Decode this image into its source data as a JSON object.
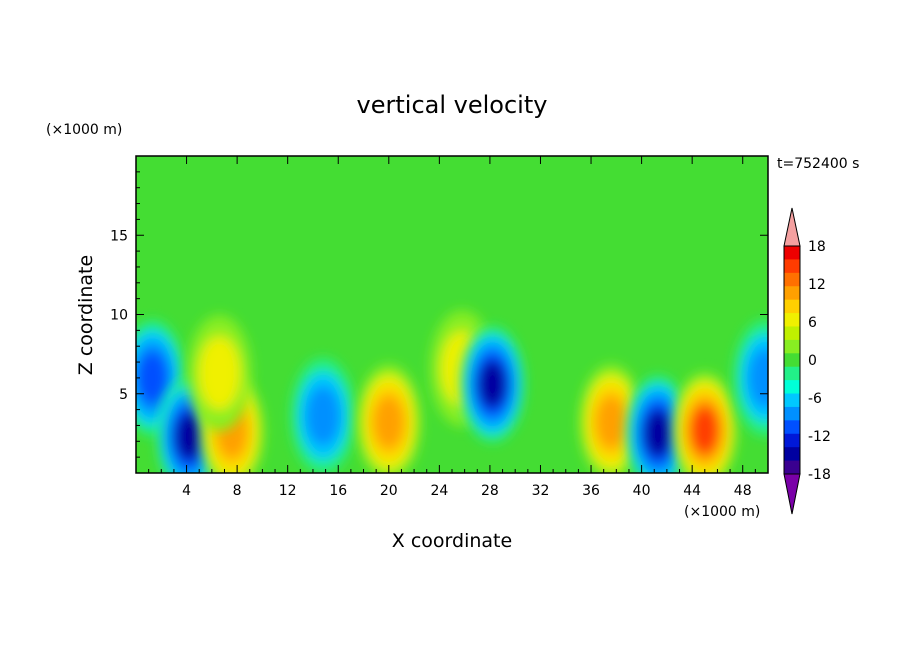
{
  "chart_data": {
    "type": "heatmap",
    "title": "vertical velocity",
    "xlabel": "X coordinate",
    "ylabel": "Z coordinate",
    "x_unit": "(×1000 m)",
    "y_unit": "(×1000 m)",
    "time_label": "t=752400 s",
    "xlim": [
      0,
      50
    ],
    "ylim": [
      0,
      20
    ],
    "x_ticks": [
      4,
      8,
      12,
      16,
      20,
      24,
      28,
      32,
      36,
      40,
      44,
      48
    ],
    "y_ticks": [
      5,
      10,
      15
    ],
    "colorbar": {
      "tick_labels": [
        "18",
        "12",
        "6",
        "0",
        "-6",
        "-12",
        "-18"
      ],
      "tick_values": [
        18,
        12,
        6,
        0,
        -6,
        -12,
        -18
      ],
      "range": [
        -21,
        21
      ],
      "extend": "both"
    },
    "background_value": 0,
    "features": [
      {
        "x": 1.3,
        "z": 6.0,
        "value": -12
      },
      {
        "x": 4.2,
        "z": 2.3,
        "value": -15
      },
      {
        "x": 7.6,
        "z": 2.6,
        "value": 12
      },
      {
        "x": 6.6,
        "z": 6.3,
        "value": 6
      },
      {
        "x": 14.8,
        "z": 3.6,
        "value": -10
      },
      {
        "x": 20.0,
        "z": 3.2,
        "value": 13
      },
      {
        "x": 25.8,
        "z": 6.6,
        "value": 5
      },
      {
        "x": 28.2,
        "z": 5.6,
        "value": -14
      },
      {
        "x": 37.6,
        "z": 3.2,
        "value": 13
      },
      {
        "x": 41.3,
        "z": 2.5,
        "value": -14
      },
      {
        "x": 45.0,
        "z": 2.7,
        "value": 14
      },
      {
        "x": 49.8,
        "z": 6.0,
        "value": -9
      }
    ]
  }
}
